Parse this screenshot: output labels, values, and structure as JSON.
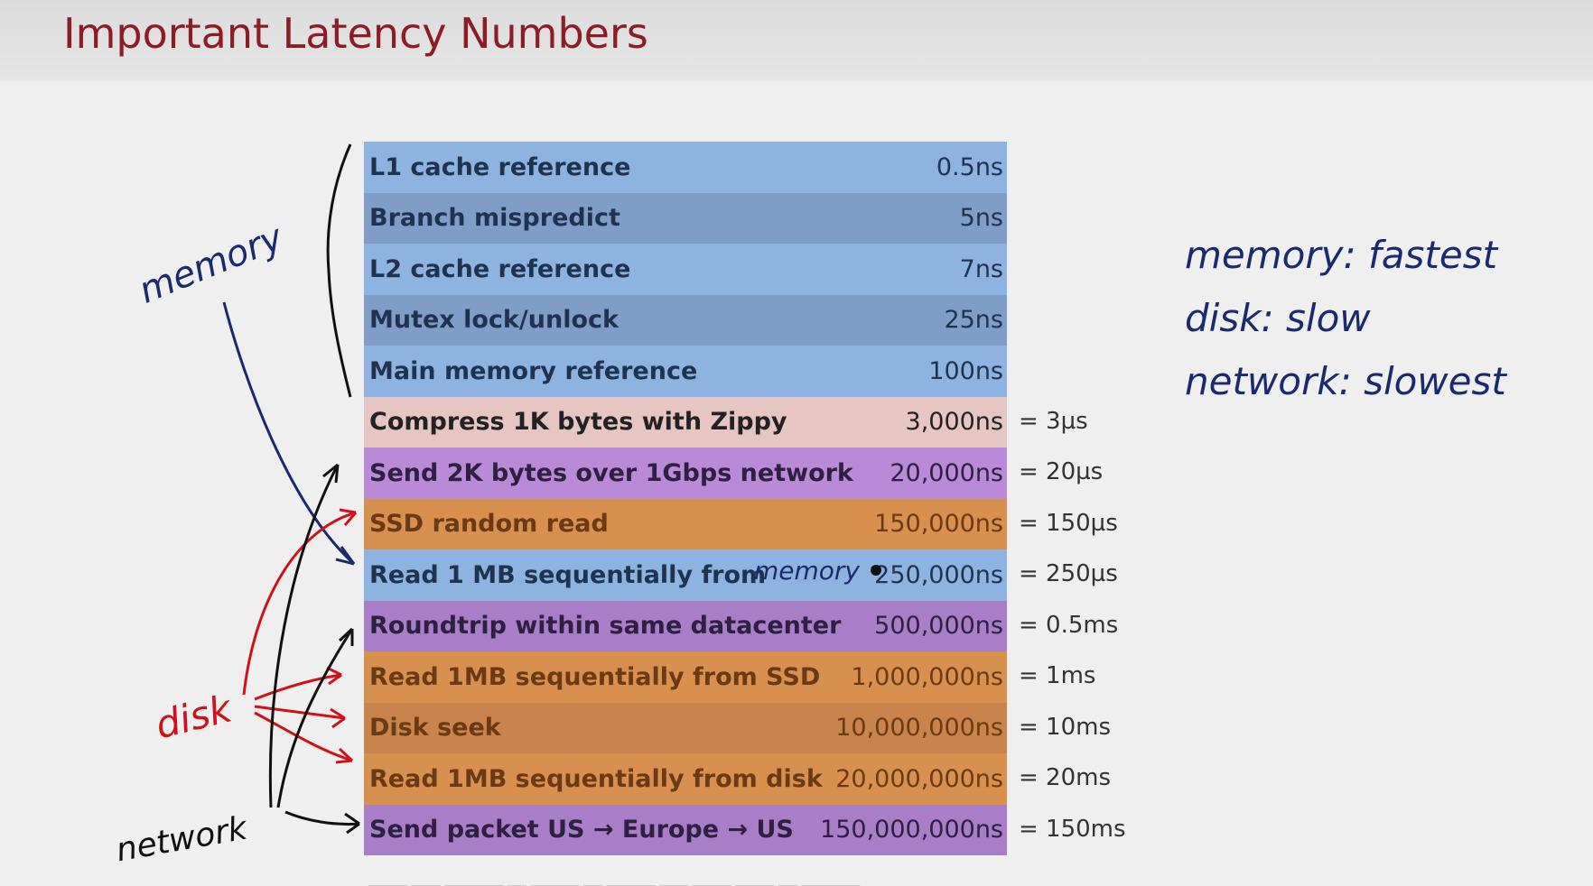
{
  "title": "Important Latency Numbers",
  "rows": [
    {
      "label": "L1 cache reference",
      "value": "0.5ns",
      "conv": "",
      "bg": "#8fb3e0",
      "fg": "#1f3350"
    },
    {
      "label": "Branch mispredict",
      "value": "5ns",
      "conv": "",
      "bg": "#7f9dc6",
      "fg": "#1f3350"
    },
    {
      "label": "L2 cache reference",
      "value": "7ns",
      "conv": "",
      "bg": "#8fb3e0",
      "fg": "#1f3350"
    },
    {
      "label": "Mutex lock/unlock",
      "value": "25ns",
      "conv": "",
      "bg": "#7f9dc6",
      "fg": "#1f3350"
    },
    {
      "label": "Main memory reference",
      "value": "100ns",
      "conv": "",
      "bg": "#8fb3e0",
      "fg": "#1f3350"
    },
    {
      "label": "Compress 1K bytes with Zippy",
      "value": "3,000ns",
      "conv": "= 3µs",
      "bg": "#e6c6c2",
      "fg": "#222222"
    },
    {
      "label": "Send 2K bytes over 1Gbps network",
      "value": "20,000ns",
      "conv": "= 20µs",
      "bg": "#b98ad8",
      "fg": "#2d2040"
    },
    {
      "label": "SSD random read",
      "value": "150,000ns",
      "conv": "= 150µs",
      "bg": "#d8904f",
      "fg": "#6a3a14"
    },
    {
      "label": "Read 1 MB sequentially from",
      "value": "250,000ns",
      "conv": "= 250µs",
      "bg": "#8fb3e0",
      "fg": "#1f3350"
    },
    {
      "label": "Roundtrip within same datacenter",
      "value": "500,000ns",
      "conv": "= 0.5ms",
      "bg": "#a97ec8",
      "fg": "#2d2040"
    },
    {
      "label": "Read 1MB sequentially from SSD",
      "value": "1,000,000ns",
      "conv": "= 1ms",
      "bg": "#d8904f",
      "fg": "#6a3a14"
    },
    {
      "label": "Disk seek",
      "value": "10,000,000ns",
      "conv": "= 10ms",
      "bg": "#c8844a",
      "fg": "#6a3a14"
    },
    {
      "label": "Read 1MB sequentially from disk",
      "value": "20,000,000ns",
      "conv": "= 20ms",
      "bg": "#d8904f",
      "fg": "#6a3a14"
    },
    {
      "label": "Send packet US → Europe → US",
      "value": "150,000,000ns",
      "conv": "= 150ms",
      "bg": "#a97ec8",
      "fg": "#2d2040"
    }
  ],
  "annotations": {
    "memory_left": "memory",
    "disk_left": "disk",
    "network_left": "network",
    "memory_inline": "memory",
    "right_memory": "memory: fastest",
    "right_disk": "disk: slow",
    "right_network": "network: slowest"
  },
  "colors": {
    "title": "#8c1d26",
    "ink_blue": "#1a2a6c",
    "ink_red": "#d0101a",
    "ink_black": "#111111"
  }
}
